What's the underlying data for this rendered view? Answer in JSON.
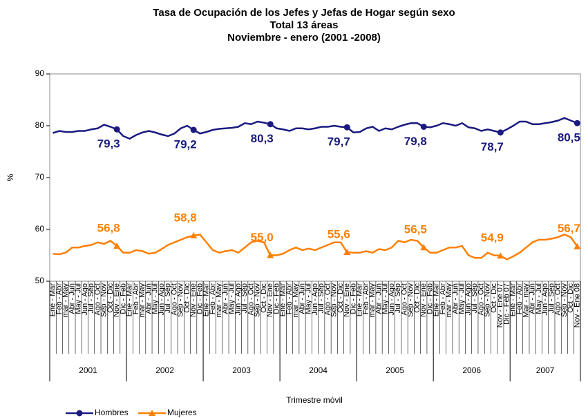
{
  "chart_data": {
    "type": "line",
    "title": "Tasa de Ocupación de los Jefes  y Jefas de Hogar según sexo",
    "subtitle": "Total 13 áreas",
    "subtitle2": "Noviembre  - enero (2001 -2008)",
    "ylabel": "%",
    "xlabel": "Trimestre móvil",
    "ylim": [
      50,
      90
    ],
    "yticks": [
      50,
      60,
      70,
      80,
      90
    ],
    "groups": [
      "2001",
      "2002",
      "2003",
      "2004",
      "2005",
      "2006",
      "2007"
    ],
    "categories": [
      "Ene - Mar",
      "Feb - Abr",
      "mar - May",
      "Abr - Jun",
      "May - Jul",
      "Jun - Ago",
      "Jul - Sep",
      "Ago - Oct",
      "Sep - Nov",
      "Oct - Dic",
      "Nov - Ene",
      "Dic - Feb",
      "Ene - Mar",
      "Feb - Abr",
      "mar - May",
      "Abr - Jun",
      "May - Jul",
      "Jun - Ago",
      "Jul - Sep",
      "Ago - Oct",
      "Sep - Nov",
      "Oct - Dic",
      "Nov - Ene",
      "Dic - Feb",
      "Ene - Mar",
      "Feb - Abr",
      "mar - May",
      "Abr - Jun",
      "May - Jul",
      "Jun - Ago",
      "Jul - Sep",
      "Ago - Oct",
      "Sep - Nov",
      "Oct - Dic",
      "Nov - Ene",
      "Dic - Feb",
      "Ene - Mar",
      "Feb - Abr",
      "mar - May",
      "Abr - Jun",
      "May - Jul",
      "Jun - Ago",
      "Jul - Sep",
      "Ago - Oct",
      "Sep - Nov",
      "Oct - Dic",
      "Nov - Ene",
      "Dic - Feb",
      "Ene - Mar",
      "Feb - Abr",
      "mar - May",
      "Abr - Jun",
      "May - Jul",
      "Jun - Ago",
      "Jul - Sep",
      "Ago - Oct",
      "Sep - Nov",
      "Oct - Dic",
      "Nov - Ene",
      "Dic - Feb",
      "Ene - Mar",
      "Feb - Abr",
      "mar - May",
      "Abr - Jun",
      "May - Jul",
      "Jun - Ago",
      "Jul - Sep",
      "Ago - Oct",
      "Sep - Nov",
      "Oct - Dic",
      "Nov - Ene 07",
      "Dic - Feb 07",
      "Ene - Mar",
      "Feb - Abr",
      "Mar - may",
      "Abr - Jun",
      "May - Jul",
      "Jun - Ago",
      "Jul - Sep",
      "Ago - Oct",
      "Sep - Nov",
      "Oct - Dic",
      "Nov - Ene 08"
    ],
    "series": [
      {
        "name": "Hombres",
        "color": "#1a1a80",
        "marker": "circle",
        "values": [
          78.6,
          79.0,
          78.8,
          78.8,
          79.0,
          79.0,
          79.3,
          79.5,
          80.2,
          79.8,
          79.3,
          78.0,
          77.5,
          78.2,
          78.7,
          79.0,
          78.7,
          78.3,
          78.0,
          78.5,
          79.5,
          80.0,
          79.2,
          78.5,
          78.8,
          79.2,
          79.4,
          79.5,
          79.6,
          79.8,
          80.5,
          80.3,
          80.8,
          80.6,
          80.3,
          79.5,
          79.3,
          79.0,
          79.5,
          79.5,
          79.3,
          79.5,
          79.8,
          79.8,
          80.0,
          79.8,
          79.7,
          78.7,
          78.8,
          79.5,
          79.8,
          79.0,
          79.5,
          79.3,
          79.8,
          80.2,
          80.5,
          80.5,
          79.8,
          79.7,
          80.0,
          80.5,
          80.3,
          80.0,
          80.5,
          79.7,
          79.5,
          79.0,
          79.3,
          79.0,
          78.7,
          79.3,
          80.0,
          80.8,
          80.8,
          80.3,
          80.3,
          80.5,
          80.7,
          81.0,
          81.5,
          81.0,
          80.5
        ],
        "value_labels": [
          null,
          null,
          null,
          null,
          null,
          null,
          null,
          null,
          null,
          null,
          "79,3",
          null,
          null,
          null,
          null,
          null,
          null,
          null,
          null,
          null,
          null,
          null,
          "79,2",
          null,
          null,
          null,
          null,
          null,
          null,
          null,
          null,
          null,
          null,
          null,
          "80,3",
          null,
          null,
          null,
          null,
          null,
          null,
          null,
          null,
          null,
          null,
          null,
          "79,7",
          null,
          null,
          null,
          null,
          null,
          null,
          null,
          null,
          null,
          null,
          null,
          "79,8",
          null,
          null,
          null,
          null,
          null,
          null,
          null,
          null,
          null,
          null,
          null,
          "78,7",
          null,
          null,
          null,
          null,
          null,
          null,
          null,
          null,
          null,
          null,
          null,
          "80,5"
        ]
      },
      {
        "name": "Mujeres",
        "color": "#ff7f00",
        "marker": "triangle",
        "values": [
          55.3,
          55.2,
          55.5,
          56.5,
          56.5,
          56.8,
          57.0,
          57.5,
          57.2,
          57.8,
          56.8,
          55.5,
          55.5,
          56.0,
          55.8,
          55.3,
          55.5,
          56.2,
          57.0,
          57.5,
          58.0,
          58.5,
          58.8,
          59.0,
          57.5,
          56.0,
          55.5,
          55.8,
          56.0,
          55.5,
          56.5,
          57.5,
          57.8,
          57.5,
          55.0,
          55.0,
          55.3,
          56.0,
          56.5,
          56.0,
          56.3,
          56.0,
          56.5,
          57.0,
          57.5,
          57.5,
          55.6,
          55.5,
          55.5,
          55.8,
          55.5,
          56.2,
          56.0,
          56.5,
          57.8,
          57.5,
          58.0,
          57.8,
          56.5,
          55.5,
          55.5,
          56.0,
          56.5,
          56.5,
          56.8,
          55.0,
          54.5,
          54.5,
          55.5,
          55.0,
          54.9,
          54.2,
          54.8,
          55.5,
          56.5,
          57.5,
          58.0,
          58.0,
          58.2,
          58.5,
          59.0,
          58.5,
          56.7
        ],
        "value_labels": [
          null,
          null,
          null,
          null,
          null,
          null,
          null,
          null,
          null,
          null,
          "56,8",
          null,
          null,
          null,
          null,
          null,
          null,
          null,
          null,
          null,
          null,
          null,
          "58,8",
          null,
          null,
          null,
          null,
          null,
          null,
          null,
          null,
          null,
          null,
          null,
          "55,0",
          null,
          null,
          null,
          null,
          null,
          null,
          null,
          null,
          null,
          null,
          null,
          "55,6",
          null,
          null,
          null,
          null,
          null,
          null,
          null,
          null,
          null,
          null,
          null,
          "56,5",
          null,
          null,
          null,
          null,
          null,
          null,
          null,
          null,
          null,
          null,
          null,
          "54,9",
          null,
          null,
          null,
          null,
          null,
          null,
          null,
          null,
          null,
          null,
          null,
          "56,7"
        ]
      }
    ],
    "legend": "bottom-left"
  }
}
